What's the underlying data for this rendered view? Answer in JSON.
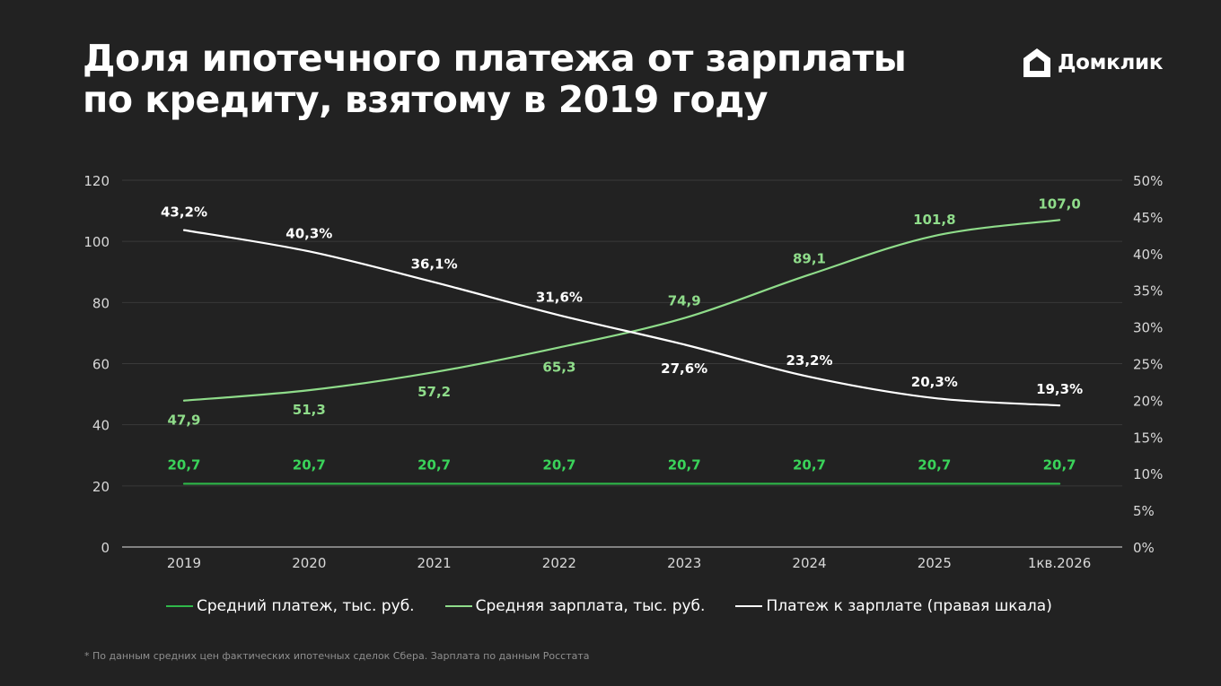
{
  "header": {
    "title_line1": "Доля ипотечного платежа от зарплаты",
    "title_line2": "по кредиту, взятому в 2019 году",
    "brand_name": "Домклик",
    "brand_icon": "house-logo-icon"
  },
  "colors": {
    "background": "#222222",
    "payment": "#2fb84a",
    "payment_label": "#3ad35a",
    "salary": "#8fdc8a",
    "ratio": "#ffffff",
    "grid": "#3a3a3a"
  },
  "chart_data": {
    "type": "line",
    "categories": [
      "2019",
      "2020",
      "2021",
      "2022",
      "2023",
      "2024",
      "2025",
      "1кв.2026"
    ],
    "y_left": {
      "min": 0,
      "max": 120,
      "ticks": [
        "0",
        "20",
        "40",
        "60",
        "80",
        "100",
        "120"
      ]
    },
    "y_right": {
      "min": 0,
      "max": 50,
      "ticks": [
        "0%",
        "5%",
        "10%",
        "15%",
        "20%",
        "25%",
        "30%",
        "35%",
        "40%",
        "45%",
        "50%"
      ]
    },
    "grid": true,
    "legend_position": "bottom",
    "series": [
      {
        "name": "Средний платеж, тыс. руб.",
        "axis": "left",
        "values": [
          20.7,
          20.7,
          20.7,
          20.7,
          20.7,
          20.7,
          20.7,
          20.7
        ],
        "labels": [
          "20,7",
          "20,7",
          "20,7",
          "20,7",
          "20,7",
          "20,7",
          "20,7",
          "20,7"
        ]
      },
      {
        "name": "Средняя зарплата, тыс. руб.",
        "axis": "left",
        "values": [
          47.9,
          51.3,
          57.2,
          65.3,
          74.9,
          89.1,
          101.8,
          107.0
        ],
        "labels": [
          "47,9",
          "51,3",
          "57,2",
          "65,3",
          "74,9",
          "89,1",
          "101,8",
          "107,0"
        ]
      },
      {
        "name": "Платеж к зарплате (правая шкала)",
        "axis": "right",
        "values": [
          43.2,
          40.3,
          36.1,
          31.6,
          27.6,
          23.2,
          20.3,
          19.3
        ],
        "labels": [
          "43,2%",
          "40,3%",
          "36,1%",
          "31,6%",
          "27,6%",
          "23,2%",
          "20,3%",
          "19,3%"
        ]
      }
    ]
  },
  "footnote": "* По данным средних цен фактических ипотечных сделок Сбера.  Зарплата по данным Росстата"
}
